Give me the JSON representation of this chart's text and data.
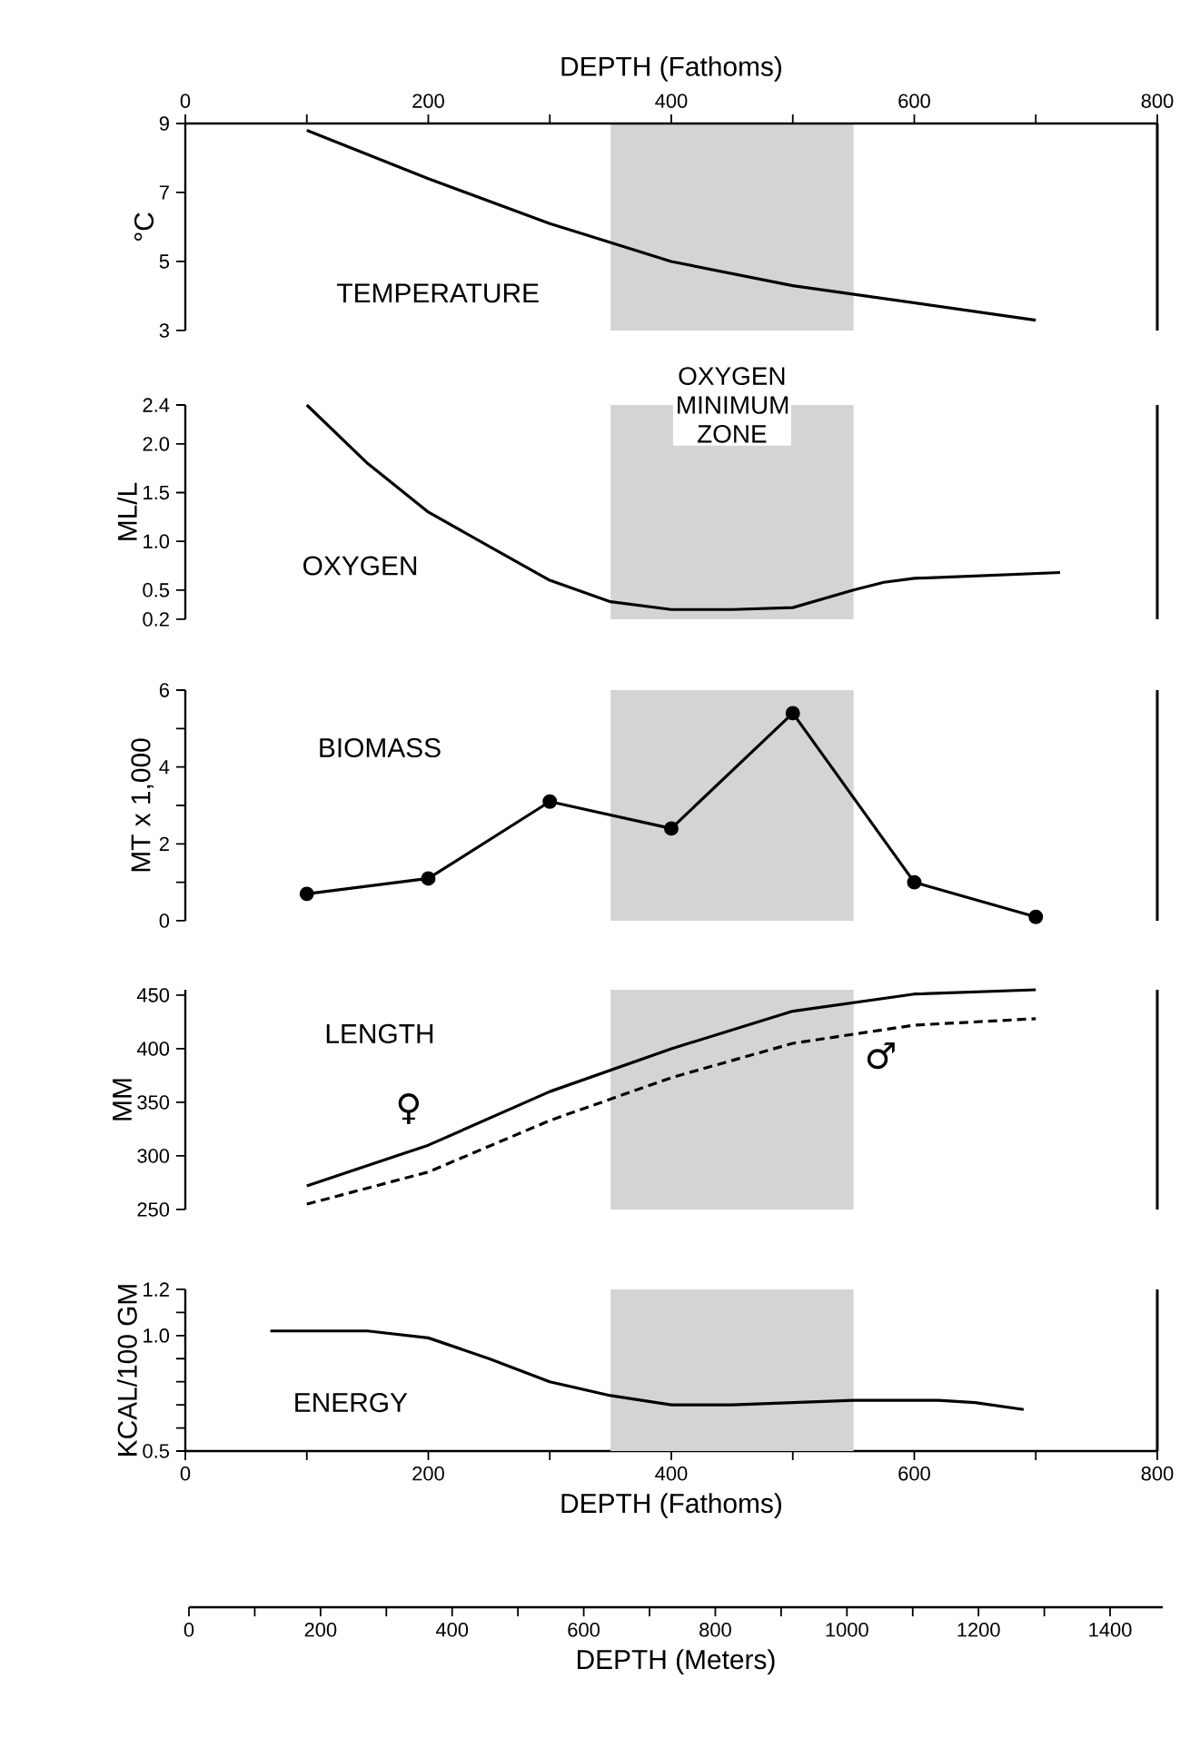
{
  "chart_data": [
    {
      "type": "line",
      "ylabel": "°C",
      "xlim": [
        0,
        800
      ],
      "ylim": [
        3,
        9
      ],
      "yticks": [
        3,
        5,
        7,
        9
      ],
      "tick_labels": "y",
      "x2lim": [
        0,
        800
      ],
      "x2ticks": [
        0,
        {
          "value": 100,
          "label": null
        },
        200,
        {
          "value": 300,
          "label": null
        },
        400,
        {
          "value": 500,
          "label": null
        },
        600,
        {
          "value": 700,
          "label": null
        },
        800
      ],
      "x2label": "DEPTH (Fathoms)",
      "bands": [
        {
          "axis": "x",
          "from": 350,
          "to": 550,
          "color": "#d4d4d4"
        }
      ],
      "annotations": [
        "TEMPERATURE"
      ],
      "series": [
        {
          "color": "#000000",
          "x": [
            100,
            200,
            300,
            400,
            500,
            600,
            700
          ],
          "values": [
            8.8,
            7.4,
            6.1,
            5.0,
            4.3,
            3.8,
            3.3
          ]
        }
      ]
    },
    {
      "type": "line",
      "ylabel": "ML/L",
      "xlim": [
        0,
        800
      ],
      "ylim": [
        0.2,
        2.4
      ],
      "yticks": [
        0.2,
        0.5,
        {
          "value": 1,
          "label": "1.0"
        },
        1.5,
        {
          "value": 2,
          "label": "2.0"
        },
        2.4
      ],
      "tick_labels": "y",
      "bands": [
        {
          "axis": "x",
          "from": 350,
          "to": 550,
          "color": "#d4d4d4",
          "label": "OXYGEN MINIMUM ZONE"
        }
      ],
      "annotations": [
        "OXYGEN"
      ],
      "series": [
        {
          "color": "#000000",
          "x": [
            100,
            150,
            200,
            250,
            300,
            350,
            400,
            450,
            500,
            550,
            575,
            600,
            720
          ],
          "values": [
            2.4,
            1.8,
            1.3,
            0.95,
            0.6,
            0.38,
            0.3,
            0.3,
            0.32,
            0.5,
            0.58,
            0.62,
            0.68
          ]
        }
      ]
    },
    {
      "type": "line",
      "ylabel": "MT x 1,000",
      "xlim": [
        0,
        800
      ],
      "ylim": [
        0,
        6
      ],
      "yticks": [
        0,
        {
          "value": 1,
          "label": null
        },
        2,
        {
          "value": 3,
          "label": null
        },
        4,
        {
          "value": 5,
          "label": null
        },
        6
      ],
      "tick_labels": "y",
      "marker": "circle",
      "bands": [
        {
          "axis": "x",
          "from": 350,
          "to": 550,
          "color": "#d4d4d4"
        }
      ],
      "annotations": [
        "BIOMASS"
      ],
      "series": [
        {
          "color": "#000000",
          "x": [
            100,
            200,
            300,
            400,
            500,
            600,
            700
          ],
          "values": [
            0.7,
            1.1,
            3.1,
            2.4,
            5.4,
            1.0,
            0.1
          ]
        }
      ]
    },
    {
      "type": "line",
      "ylabel": "MM",
      "xlim": [
        0,
        800
      ],
      "ylim": [
        250,
        455
      ],
      "yticks": [
        250,
        300,
        350,
        400,
        450
      ],
      "tick_labels": "y",
      "bands": [
        {
          "axis": "x",
          "from": 350,
          "to": 550,
          "color": "#d4d4d4"
        }
      ],
      "annotations": [
        "LENGTH"
      ],
      "series": [
        {
          "name": "♀",
          "color": "#000000",
          "line_style": "solid",
          "x": [
            100,
            200,
            300,
            400,
            500,
            600,
            700
          ],
          "values": [
            272,
            310,
            360,
            400,
            435,
            451,
            455
          ]
        },
        {
          "name": "♂",
          "color": "#000000",
          "line_style": "dashed",
          "x": [
            100,
            200,
            300,
            400,
            500,
            600,
            700
          ],
          "values": [
            255,
            285,
            333,
            373,
            405,
            422,
            428
          ]
        }
      ]
    },
    {
      "type": "line",
      "ylabel": "KCAL/100 GM",
      "xlabel": "DEPTH (Fathoms)",
      "xlim": [
        0,
        800
      ],
      "ylim": [
        0.5,
        1.2
      ],
      "xticks": [
        0,
        {
          "value": 100,
          "label": null
        },
        200,
        {
          "value": 300,
          "label": null
        },
        400,
        {
          "value": 500,
          "label": null
        },
        600,
        {
          "value": 700,
          "label": null
        },
        800
      ],
      "x2lim": [
        0,
        1480
      ],
      "x2label": "DEPTH (Meters)",
      "x2ticks": [
        0,
        200,
        400,
        600,
        800,
        1000,
        1200,
        1400
      ],
      "yticks": [
        0.5,
        {
          "value": 0.6,
          "label": null
        },
        {
          "value": 0.7,
          "label": null
        },
        {
          "value": 0.8,
          "label": null
        },
        {
          "value": 0.9,
          "label": null
        },
        {
          "value": 1,
          "label": "1.0"
        },
        {
          "value": 1.1,
          "label": null
        },
        1.2
      ],
      "bands": [
        {
          "axis": "x",
          "from": 350,
          "to": 550,
          "color": "#d4d4d4"
        }
      ],
      "annotations": [
        "ENERGY"
      ],
      "series": [
        {
          "color": "#000000",
          "x": [
            70,
            150,
            200,
            250,
            300,
            350,
            400,
            450,
            500,
            550,
            620,
            650,
            690
          ],
          "values": [
            1.02,
            1.02,
            0.99,
            0.9,
            0.8,
            0.74,
            0.7,
            0.7,
            0.71,
            0.72,
            0.72,
            0.71,
            0.68
          ]
        }
      ]
    }
  ]
}
